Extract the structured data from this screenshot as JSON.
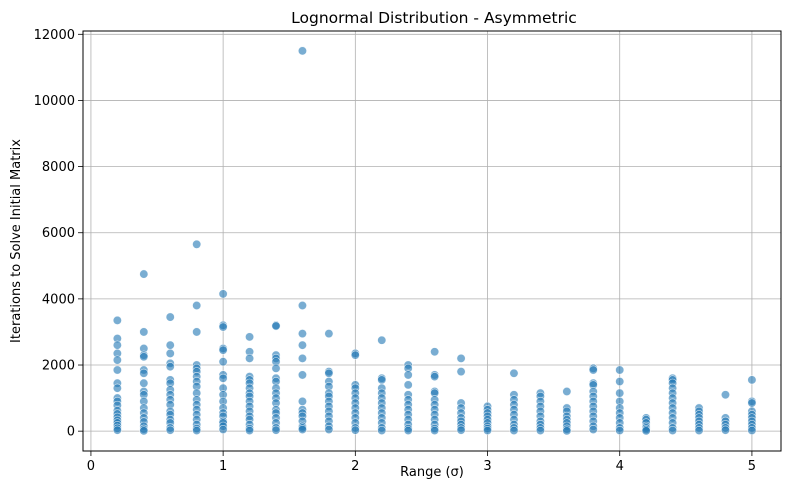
{
  "chart_data": {
    "type": "scatter",
    "title": "Lognormal Distribution - Asymmetric",
    "xlabel": "Range (σ)",
    "ylabel": "Iterations to Solve Initial Matrix",
    "xlim": [
      -0.06,
      5.22
    ],
    "ylim": [
      -600,
      12100
    ],
    "xticks": [
      0,
      1,
      2,
      3,
      4,
      5
    ],
    "yticks": [
      0,
      2000,
      4000,
      6000,
      8000,
      10000,
      12000
    ],
    "grid": true,
    "marker_color": "#1f77b4",
    "marker_alpha": 0.6,
    "series": [
      {
        "points": [
          [
            0.2,
            3350
          ],
          [
            0.2,
            2800
          ],
          [
            0.2,
            2600
          ],
          [
            0.2,
            2350
          ],
          [
            0.2,
            2150
          ],
          [
            0.2,
            1850
          ],
          [
            0.2,
            1450
          ],
          [
            0.2,
            1300
          ],
          [
            0.2,
            1000
          ],
          [
            0.2,
            900
          ],
          [
            0.2,
            780
          ],
          [
            0.2,
            620
          ],
          [
            0.2,
            520
          ],
          [
            0.2,
            420
          ],
          [
            0.2,
            330
          ],
          [
            0.2,
            250
          ],
          [
            0.2,
            170
          ],
          [
            0.2,
            90
          ],
          [
            0.2,
            30
          ],
          [
            0.4,
            4750
          ],
          [
            0.4,
            3000
          ],
          [
            0.4,
            2500
          ],
          [
            0.4,
            2300
          ],
          [
            0.4,
            2250
          ],
          [
            0.4,
            1850
          ],
          [
            0.4,
            1750
          ],
          [
            0.4,
            1450
          ],
          [
            0.4,
            1200
          ],
          [
            0.4,
            1100
          ],
          [
            0.4,
            900
          ],
          [
            0.4,
            700
          ],
          [
            0.4,
            550
          ],
          [
            0.4,
            400
          ],
          [
            0.4,
            280
          ],
          [
            0.4,
            150
          ],
          [
            0.4,
            60
          ],
          [
            0.4,
            10
          ],
          [
            0.6,
            3450
          ],
          [
            0.6,
            2600
          ],
          [
            0.6,
            2350
          ],
          [
            0.6,
            2050
          ],
          [
            0.6,
            1950
          ],
          [
            0.6,
            1550
          ],
          [
            0.6,
            1450
          ],
          [
            0.6,
            1250
          ],
          [
            0.6,
            1100
          ],
          [
            0.6,
            950
          ],
          [
            0.6,
            800
          ],
          [
            0.6,
            600
          ],
          [
            0.6,
            500
          ],
          [
            0.6,
            350
          ],
          [
            0.6,
            250
          ],
          [
            0.6,
            100
          ],
          [
            0.6,
            30
          ],
          [
            0.8,
            5650
          ],
          [
            0.8,
            3800
          ],
          [
            0.8,
            3000
          ],
          [
            0.8,
            2000
          ],
          [
            0.8,
            1900
          ],
          [
            0.8,
            1800
          ],
          [
            0.8,
            1650
          ],
          [
            0.8,
            1500
          ],
          [
            0.8,
            1350
          ],
          [
            0.8,
            1150
          ],
          [
            0.8,
            950
          ],
          [
            0.8,
            800
          ],
          [
            0.8,
            650
          ],
          [
            0.8,
            500
          ],
          [
            0.8,
            350
          ],
          [
            0.8,
            200
          ],
          [
            0.8,
            80
          ],
          [
            0.8,
            20
          ],
          [
            1.0,
            4150
          ],
          [
            1.0,
            3200
          ],
          [
            1.0,
            3150
          ],
          [
            1.0,
            2500
          ],
          [
            1.0,
            2450
          ],
          [
            1.0,
            2100
          ],
          [
            1.0,
            1700
          ],
          [
            1.0,
            1600
          ],
          [
            1.0,
            1300
          ],
          [
            1.0,
            1100
          ],
          [
            1.0,
            900
          ],
          [
            1.0,
            700
          ],
          [
            1.0,
            550
          ],
          [
            1.0,
            450
          ],
          [
            1.0,
            300
          ],
          [
            1.0,
            250
          ],
          [
            1.0,
            150
          ],
          [
            1.0,
            50
          ],
          [
            1.2,
            2850
          ],
          [
            1.2,
            2400
          ],
          [
            1.2,
            2200
          ],
          [
            1.2,
            1650
          ],
          [
            1.2,
            1550
          ],
          [
            1.2,
            1450
          ],
          [
            1.2,
            1300
          ],
          [
            1.2,
            1150
          ],
          [
            1.2,
            1050
          ],
          [
            1.2,
            900
          ],
          [
            1.2,
            750
          ],
          [
            1.2,
            600
          ],
          [
            1.2,
            450
          ],
          [
            1.2,
            350
          ],
          [
            1.2,
            200
          ],
          [
            1.2,
            80
          ],
          [
            1.2,
            20
          ],
          [
            1.4,
            3200
          ],
          [
            1.4,
            3180
          ],
          [
            1.4,
            2300
          ],
          [
            1.4,
            2200
          ],
          [
            1.4,
            2100
          ],
          [
            1.4,
            1900
          ],
          [
            1.4,
            1600
          ],
          [
            1.4,
            1500
          ],
          [
            1.4,
            1300
          ],
          [
            1.4,
            1150
          ],
          [
            1.4,
            1000
          ],
          [
            1.4,
            850
          ],
          [
            1.4,
            650
          ],
          [
            1.4,
            550
          ],
          [
            1.4,
            400
          ],
          [
            1.4,
            250
          ],
          [
            1.4,
            100
          ],
          [
            1.4,
            30
          ],
          [
            1.6,
            11500
          ],
          [
            1.6,
            3800
          ],
          [
            1.6,
            2950
          ],
          [
            1.6,
            2600
          ],
          [
            1.6,
            2200
          ],
          [
            1.6,
            1700
          ],
          [
            1.6,
            900
          ],
          [
            1.6,
            650
          ],
          [
            1.6,
            550
          ],
          [
            1.6,
            450
          ],
          [
            1.6,
            300
          ],
          [
            1.6,
            150
          ],
          [
            1.6,
            100
          ],
          [
            1.6,
            50
          ],
          [
            1.8,
            2950
          ],
          [
            1.8,
            1800
          ],
          [
            1.8,
            1750
          ],
          [
            1.8,
            1500
          ],
          [
            1.8,
            1350
          ],
          [
            1.8,
            1150
          ],
          [
            1.8,
            1050
          ],
          [
            1.8,
            900
          ],
          [
            1.8,
            750
          ],
          [
            1.8,
            600
          ],
          [
            1.8,
            450
          ],
          [
            1.8,
            300
          ],
          [
            1.8,
            150
          ],
          [
            1.8,
            50
          ],
          [
            2.0,
            2350
          ],
          [
            2.0,
            2300
          ],
          [
            2.0,
            1400
          ],
          [
            2.0,
            1300
          ],
          [
            2.0,
            1150
          ],
          [
            2.0,
            1000
          ],
          [
            2.0,
            850
          ],
          [
            2.0,
            700
          ],
          [
            2.0,
            550
          ],
          [
            2.0,
            400
          ],
          [
            2.0,
            250
          ],
          [
            2.0,
            100
          ],
          [
            2.0,
            30
          ],
          [
            2.2,
            2750
          ],
          [
            2.2,
            1600
          ],
          [
            2.2,
            1550
          ],
          [
            2.2,
            1300
          ],
          [
            2.2,
            1150
          ],
          [
            2.2,
            1000
          ],
          [
            2.2,
            850
          ],
          [
            2.2,
            700
          ],
          [
            2.2,
            550
          ],
          [
            2.2,
            400
          ],
          [
            2.2,
            250
          ],
          [
            2.2,
            100
          ],
          [
            2.2,
            20
          ],
          [
            2.4,
            2000
          ],
          [
            2.4,
            1900
          ],
          [
            2.4,
            1700
          ],
          [
            2.4,
            1400
          ],
          [
            2.4,
            1100
          ],
          [
            2.4,
            950
          ],
          [
            2.4,
            800
          ],
          [
            2.4,
            650
          ],
          [
            2.4,
            500
          ],
          [
            2.4,
            350
          ],
          [
            2.4,
            200
          ],
          [
            2.4,
            80
          ],
          [
            2.4,
            20
          ],
          [
            2.6,
            2400
          ],
          [
            2.6,
            1700
          ],
          [
            2.6,
            1650
          ],
          [
            2.6,
            1200
          ],
          [
            2.6,
            1150
          ],
          [
            2.6,
            950
          ],
          [
            2.6,
            800
          ],
          [
            2.6,
            650
          ],
          [
            2.6,
            500
          ],
          [
            2.6,
            350
          ],
          [
            2.6,
            200
          ],
          [
            2.6,
            80
          ],
          [
            2.6,
            20
          ],
          [
            2.8,
            2200
          ],
          [
            2.8,
            1800
          ],
          [
            2.8,
            850
          ],
          [
            2.8,
            700
          ],
          [
            2.8,
            550
          ],
          [
            2.8,
            400
          ],
          [
            2.8,
            300
          ],
          [
            2.8,
            200
          ],
          [
            2.8,
            100
          ],
          [
            2.8,
            30
          ],
          [
            3.0,
            750
          ],
          [
            3.0,
            650
          ],
          [
            3.0,
            550
          ],
          [
            3.0,
            450
          ],
          [
            3.0,
            350
          ],
          [
            3.0,
            250
          ],
          [
            3.0,
            150
          ],
          [
            3.0,
            80
          ],
          [
            3.0,
            20
          ],
          [
            3.2,
            1750
          ],
          [
            3.2,
            1100
          ],
          [
            3.2,
            950
          ],
          [
            3.2,
            800
          ],
          [
            3.2,
            650
          ],
          [
            3.2,
            500
          ],
          [
            3.2,
            350
          ],
          [
            3.2,
            200
          ],
          [
            3.2,
            100
          ],
          [
            3.2,
            20
          ],
          [
            3.4,
            1150
          ],
          [
            3.4,
            1050
          ],
          [
            3.4,
            900
          ],
          [
            3.4,
            750
          ],
          [
            3.4,
            600
          ],
          [
            3.4,
            450
          ],
          [
            3.4,
            300
          ],
          [
            3.4,
            200
          ],
          [
            3.4,
            100
          ],
          [
            3.4,
            20
          ],
          [
            3.6,
            1200
          ],
          [
            3.6,
            700
          ],
          [
            3.6,
            600
          ],
          [
            3.6,
            450
          ],
          [
            3.6,
            350
          ],
          [
            3.6,
            250
          ],
          [
            3.6,
            150
          ],
          [
            3.6,
            60
          ],
          [
            3.6,
            10
          ],
          [
            3.8,
            1900
          ],
          [
            3.8,
            1850
          ],
          [
            3.8,
            1450
          ],
          [
            3.8,
            1400
          ],
          [
            3.8,
            1200
          ],
          [
            3.8,
            1050
          ],
          [
            3.8,
            900
          ],
          [
            3.8,
            750
          ],
          [
            3.8,
            600
          ],
          [
            3.8,
            450
          ],
          [
            3.8,
            300
          ],
          [
            3.8,
            150
          ],
          [
            3.8,
            50
          ],
          [
            4.0,
            1850
          ],
          [
            4.0,
            1500
          ],
          [
            4.0,
            1150
          ],
          [
            4.0,
            900
          ],
          [
            4.0,
            700
          ],
          [
            4.0,
            550
          ],
          [
            4.0,
            400
          ],
          [
            4.0,
            250
          ],
          [
            4.0,
            100
          ],
          [
            4.0,
            20
          ],
          [
            4.2,
            400
          ],
          [
            4.2,
            350
          ],
          [
            4.2,
            250
          ],
          [
            4.2,
            150
          ],
          [
            4.2,
            100
          ],
          [
            4.2,
            50
          ],
          [
            4.2,
            10
          ],
          [
            4.4,
            1600
          ],
          [
            4.4,
            1550
          ],
          [
            4.4,
            1450
          ],
          [
            4.4,
            1300
          ],
          [
            4.4,
            1150
          ],
          [
            4.4,
            1000
          ],
          [
            4.4,
            850
          ],
          [
            4.4,
            700
          ],
          [
            4.4,
            550
          ],
          [
            4.4,
            400
          ],
          [
            4.4,
            250
          ],
          [
            4.4,
            100
          ],
          [
            4.4,
            20
          ],
          [
            4.6,
            700
          ],
          [
            4.6,
            600
          ],
          [
            4.6,
            500
          ],
          [
            4.6,
            400
          ],
          [
            4.6,
            300
          ],
          [
            4.6,
            200
          ],
          [
            4.6,
            100
          ],
          [
            4.6,
            20
          ],
          [
            4.8,
            1100
          ],
          [
            4.8,
            400
          ],
          [
            4.8,
            300
          ],
          [
            4.8,
            200
          ],
          [
            4.8,
            100
          ],
          [
            4.8,
            30
          ],
          [
            5.0,
            1550
          ],
          [
            5.0,
            900
          ],
          [
            5.0,
            850
          ],
          [
            5.0,
            600
          ],
          [
            5.0,
            500
          ],
          [
            5.0,
            400
          ],
          [
            5.0,
            300
          ],
          [
            5.0,
            200
          ],
          [
            5.0,
            100
          ],
          [
            5.0,
            20
          ]
        ]
      }
    ]
  }
}
